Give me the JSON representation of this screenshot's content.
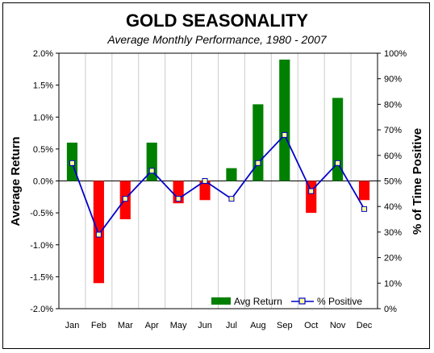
{
  "chart_data": {
    "type": "bar",
    "title": "GOLD SEASONALITY",
    "subtitle": "Average Monthly Performance, 1980 - 2007",
    "ylabel": "Average Return",
    "y2label": "% of Time Positive",
    "categories": [
      "Jan",
      "Feb",
      "Mar",
      "Apr",
      "May",
      "Jun",
      "Jul",
      "Aug",
      "Sep",
      "Oct",
      "Nov",
      "Dec"
    ],
    "ylim": [
      -2.0,
      2.0
    ],
    "y2lim": [
      0,
      100
    ],
    "yticks": [
      "2.0%",
      "1.5%",
      "1.0%",
      "0.5%",
      "0.0%",
      "-0.5%",
      "-1.0%",
      "-1.5%",
      "-2.0%"
    ],
    "y2ticks": [
      "100%",
      "90%",
      "80%",
      "70%",
      "60%",
      "50%",
      "40%",
      "30%",
      "20%",
      "10%",
      "0%"
    ],
    "grid": "vertical",
    "legend_position": "bottom-right",
    "series": [
      {
        "name": "Avg Return",
        "type": "bar",
        "axis": "left",
        "values": [
          0.6,
          -1.6,
          -0.6,
          0.6,
          -0.35,
          -0.3,
          0.2,
          1.2,
          1.9,
          -0.5,
          1.3,
          -0.3
        ]
      },
      {
        "name": "% Positive",
        "type": "line",
        "axis": "right",
        "values": [
          57,
          29,
          43,
          54,
          43,
          50,
          43,
          57,
          68,
          46,
          57,
          39
        ]
      }
    ],
    "colors": {
      "positive_bar": "#008000",
      "negative_bar": "#ff0000",
      "line": "#0000cc",
      "marker_fill": "#ffff99",
      "grid": "#cccccc"
    }
  }
}
